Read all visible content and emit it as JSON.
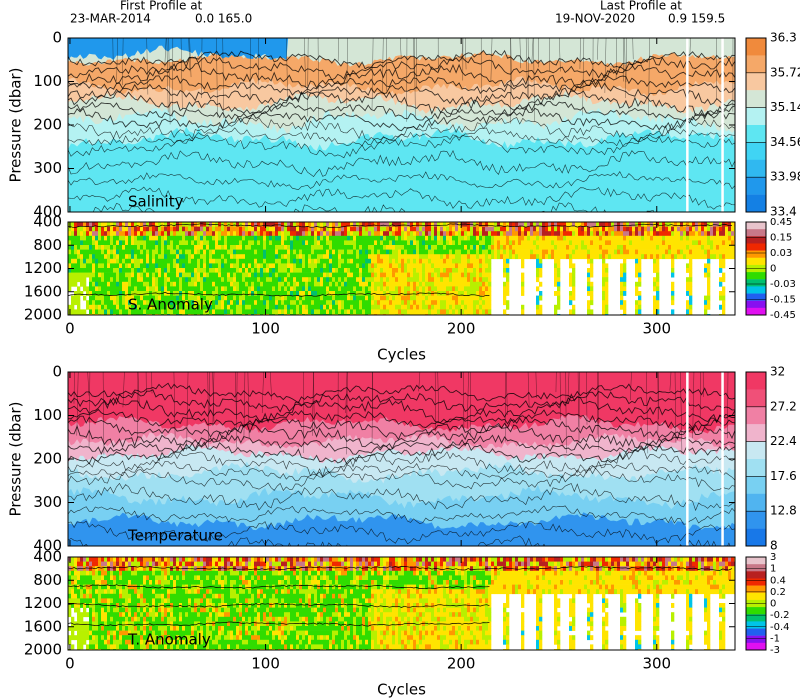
{
  "header": {
    "first_label": "First Profile at",
    "first_date": "23-MAR-2014",
    "first_position": "0.0 165.0",
    "last_label": "Last Profile at",
    "last_date": "19-NOV-2020",
    "last_position": "0.9 159.5"
  },
  "chart_data": [
    {
      "type": "contour",
      "title": "Salinity",
      "ylabel": "Pressure (dbar)",
      "xlim": [
        -1,
        340
      ],
      "xticks": [
        0,
        100,
        200,
        300
      ],
      "ylim": [
        0,
        400
      ],
      "yticks": [
        0,
        100,
        200,
        300,
        400
      ],
      "y_inverted": true,
      "colorbar": {
        "ticks": [
          36.3,
          35.72,
          35.14,
          34.56,
          33.98,
          33.4
        ],
        "colors": [
          "#f08a3c",
          "#f5a868",
          "#f8c8a0",
          "#d4e6d6",
          "#b4f2f2",
          "#5ee6f2",
          "#40d4f4",
          "#30b8f0",
          "#2098ec",
          "#1480e4"
        ]
      }
    },
    {
      "type": "anomaly",
      "title": "S. Anomaly",
      "xlabel": "Cycles",
      "xlim": [
        -1,
        340
      ],
      "xticks": [
        0,
        100,
        200,
        300
      ],
      "ylim": [
        400,
        2000
      ],
      "yticks": [
        400,
        800,
        1200,
        1600,
        2000
      ],
      "y_inverted": true,
      "colorbar": {
        "ticks": [
          0.45,
          0.15,
          0.03,
          0,
          -0.03,
          -0.15,
          -0.45
        ],
        "colors": [
          "#e8c4cc",
          "#c87888",
          "#b82020",
          "#f02800",
          "#ff9800",
          "#ffe400",
          "#b8f000",
          "#30dc00",
          "#00c070",
          "#00c4e8",
          "#2060f0",
          "#8810f0",
          "#e010f0"
        ]
      }
    },
    {
      "type": "contour",
      "title": "Temperature",
      "ylabel": "Pressure (dbar)",
      "xlim": [
        -1,
        340
      ],
      "xticks": [
        0,
        100,
        200,
        300
      ],
      "ylim": [
        0,
        400
      ],
      "yticks": [
        0,
        100,
        200,
        300,
        400
      ],
      "y_inverted": true,
      "colorbar": {
        "ticks": [
          32,
          27.2,
          22.4,
          17.6,
          12.8,
          8
        ],
        "colors": [
          "#f03864",
          "#f05078",
          "#f080a4",
          "#f0b4cc",
          "#c8e8f2",
          "#a0e0f2",
          "#78d0f2",
          "#50b4f0",
          "#3094ee",
          "#1878e8"
        ]
      }
    },
    {
      "type": "anomaly",
      "title": "T. Anomaly",
      "xlabel": "Cycles",
      "xlim": [
        -1,
        340
      ],
      "xticks": [
        0,
        100,
        200,
        300
      ],
      "ylim": [
        400,
        2000
      ],
      "yticks": [
        400,
        800,
        1200,
        1600,
        2000
      ],
      "y_inverted": true,
      "colorbar": {
        "ticks": [
          3,
          1,
          0.4,
          0.2,
          0,
          -0.2,
          -0.4,
          -1,
          -3
        ],
        "colors": [
          "#e8c4cc",
          "#c87888",
          "#b82020",
          "#f02800",
          "#ff9800",
          "#ffe400",
          "#b8f000",
          "#30dc00",
          "#00c070",
          "#00c4e8",
          "#2060f0",
          "#8810f0",
          "#e010f0"
        ]
      }
    }
  ]
}
